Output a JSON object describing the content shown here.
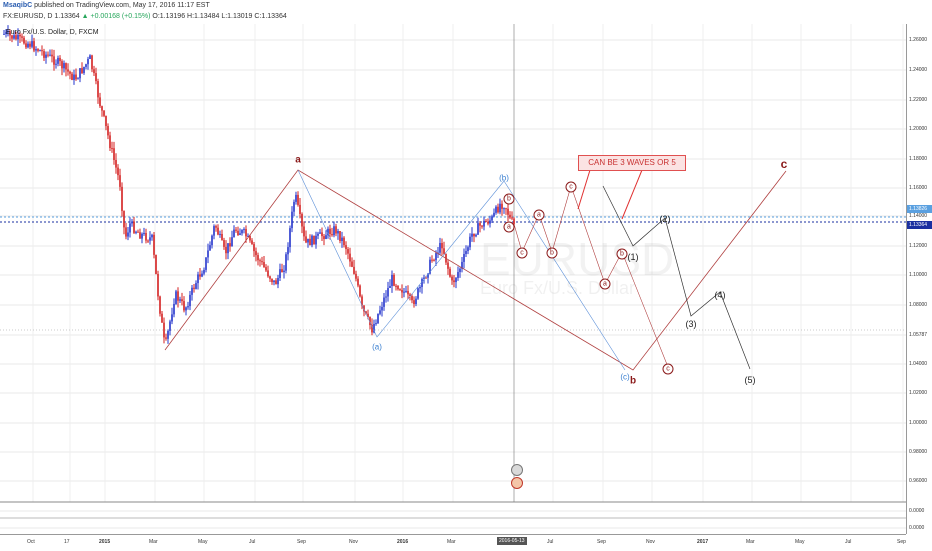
{
  "header": {
    "author": "MsaqibC",
    "published": " published on TradingView.com, May 17, 2016 11:17 EST",
    "symbol": "FX:EURUSD, D",
    "last": "1.13364",
    "change": "▲ +0.00168 (+0.15%)",
    "open": "O:1.13196",
    "high": "H:1.13484",
    "low": "L:1.13019",
    "close": "C:1.13364"
  },
  "legend": {
    "title": "Euro Fx/U.S. Dollar, D, FXCM"
  },
  "watermark": {
    "main": "EURUSD",
    "sub": "Euro Fx/U.S. Dollar"
  },
  "y_axis": {
    "labels": [
      "1.26000",
      "1.24000",
      "1.22000",
      "1.20000",
      "1.18000",
      "1.16000",
      "1.14000",
      "1.12000",
      "1.10000",
      "1.08000",
      "1.05787",
      "1.04000",
      "1.02000",
      "1.00000",
      "0.98000",
      "0.96000",
      "0.0000",
      "0.0000"
    ],
    "price_box_1": "1.13826",
    "price_box_2": "1.13364"
  },
  "x_axis": {
    "labels": [
      "Oct",
      "17",
      "2015",
      "Mar",
      "May",
      "Jul",
      "Sep",
      "Nov",
      "2016",
      "Mar",
      "Jul",
      "Sep",
      "Nov",
      "2017",
      "Mar",
      "May",
      "Jul",
      "Sep"
    ],
    "cursor_date": "2016-05-13"
  },
  "annotations": {
    "note": "CAN BE 3 WAVES OR  5",
    "big_a": "a",
    "big_b": "b",
    "big_c": "c",
    "blue_a": "(a)",
    "blue_b": "(b)",
    "blue_c": "(c)",
    "small_labels": [
      "c",
      "a",
      "b",
      "c",
      "a",
      "b",
      "a",
      "b",
      "c"
    ],
    "black_labels": [
      "(1)",
      "(2)",
      "(3)",
      "(4)",
      "(5)"
    ]
  },
  "colors": {
    "bull": "#2233cc",
    "bear": "#d41f1f",
    "wave_red": "#b04040",
    "wave_blue": "#5b8fd8",
    "wave_black": "#333333",
    "current_price": "#1a2fa0",
    "prev_price": "#5aa0e0"
  }
}
